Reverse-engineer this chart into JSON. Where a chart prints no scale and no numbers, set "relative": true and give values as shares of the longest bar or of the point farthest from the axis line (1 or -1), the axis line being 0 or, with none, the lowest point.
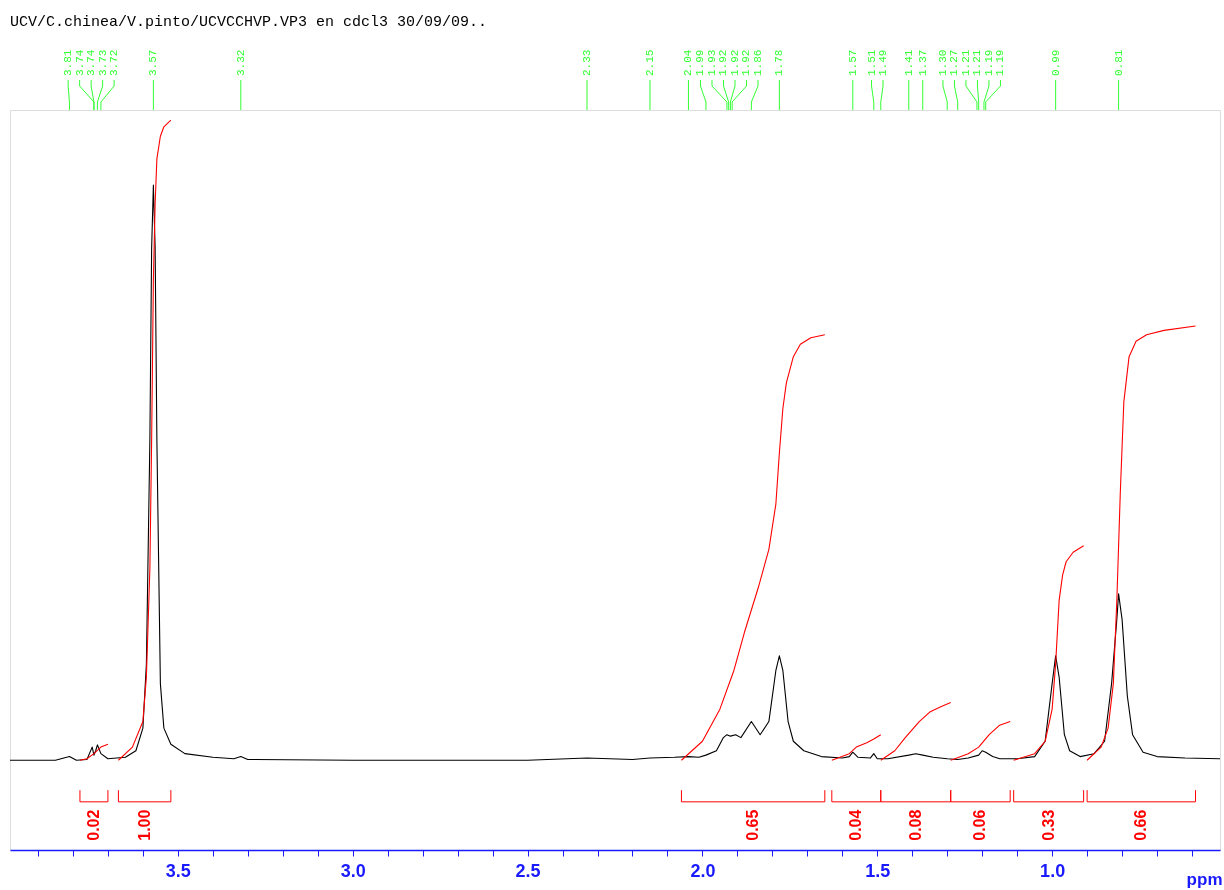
{
  "chart_data": {
    "type": "line",
    "relative": true,
    "title": "UCV/C.chinea/V.pinto/UCVCCHVP.VP3 en cdcl3 30/09/09..",
    "xlabel": "ppm",
    "xlim": [
      3.98,
      0.52
    ],
    "xticks": [
      {
        "value": 3.9,
        "label": null
      },
      {
        "value": 3.8,
        "label": null
      },
      {
        "value": 3.7,
        "label": null
      },
      {
        "value": 3.6,
        "label": null
      },
      3.5,
      {
        "value": 3.4,
        "label": null
      },
      {
        "value": 3.3,
        "label": null
      },
      {
        "value": 3.2,
        "label": null
      },
      {
        "value": 3.1,
        "label": null
      },
      {
        "value": 3,
        "label": "3.0"
      },
      {
        "value": 2.9,
        "label": null
      },
      {
        "value": 2.8,
        "label": null
      },
      {
        "value": 2.7,
        "label": null
      },
      {
        "value": 2.6,
        "label": null
      },
      2.5,
      {
        "value": 2.4,
        "label": null
      },
      {
        "value": 2.3,
        "label": null
      },
      {
        "value": 2.2,
        "label": null
      },
      {
        "value": 2.1,
        "label": null
      },
      {
        "value": 2,
        "label": "2.0"
      },
      {
        "value": 1.9,
        "label": null
      },
      {
        "value": 1.8,
        "label": null
      },
      {
        "value": 1.7,
        "label": null
      },
      {
        "value": 1.6,
        "label": null
      },
      1.5,
      {
        "value": 1.4,
        "label": null
      },
      {
        "value": 1.3,
        "label": null
      },
      {
        "value": 1.2,
        "label": null
      },
      {
        "value": 1.1,
        "label": null
      },
      {
        "value": 1,
        "label": "1.0"
      },
      {
        "value": 0.9,
        "label": null
      },
      {
        "value": 0.8,
        "label": null
      },
      {
        "value": 0.7,
        "label": null
      },
      {
        "value": 0.6,
        "label": null
      }
    ],
    "grid": false,
    "marker": "none",
    "line_style": "solid",
    "series": [
      {
        "color": "#000000",
        "x": [
          3.98,
          3.85,
          3.81,
          3.79,
          3.76,
          3.745,
          3.74,
          3.735,
          3.73,
          3.72,
          3.7,
          3.65,
          3.62,
          3.6,
          3.59,
          3.58,
          3.575,
          3.57,
          3.565,
          3.56,
          3.55,
          3.54,
          3.52,
          3.48,
          3.4,
          3.34,
          3.32,
          3.3,
          3.0,
          2.5,
          2.33,
          2.2,
          2.15,
          2.08,
          2.04,
          2.01,
          1.99,
          1.96,
          1.94,
          1.93,
          1.92,
          1.905,
          1.89,
          1.86,
          1.835,
          1.81,
          1.79,
          1.78,
          1.77,
          1.755,
          1.74,
          1.71,
          1.66,
          1.6,
          1.58,
          1.57,
          1.555,
          1.52,
          1.51,
          1.5,
          1.47,
          1.41,
          1.39,
          1.37,
          1.34,
          1.3,
          1.27,
          1.24,
          1.21,
          1.2,
          1.19,
          1.17,
          1.15,
          1.1,
          1.05,
          1.02,
          1.0,
          0.99,
          0.98,
          0.965,
          0.95,
          0.92,
          0.88,
          0.85,
          0.83,
          0.815,
          0.81,
          0.8,
          0.785,
          0.77,
          0.74,
          0.7,
          0.62,
          0.52
        ],
        "values": [
          0.123,
          0.123,
          0.128,
          0.123,
          0.124,
          0.141,
          0.13,
          0.136,
          0.144,
          0.132,
          0.125,
          0.127,
          0.136,
          0.167,
          0.255,
          0.562,
          0.825,
          0.911,
          0.825,
          0.562,
          0.228,
          0.167,
          0.145,
          0.132,
          0.127,
          0.125,
          0.128,
          0.124,
          0.123,
          0.123,
          0.126,
          0.124,
          0.126,
          0.127,
          0.128,
          0.127,
          0.13,
          0.136,
          0.154,
          0.158,
          0.156,
          0.158,
          0.154,
          0.176,
          0.158,
          0.176,
          0.246,
          0.266,
          0.246,
          0.176,
          0.149,
          0.136,
          0.128,
          0.126,
          0.128,
          0.134,
          0.127,
          0.126,
          0.132,
          0.125,
          0.125,
          0.13,
          0.132,
          0.13,
          0.127,
          0.125,
          0.124,
          0.126,
          0.13,
          0.136,
          0.134,
          0.128,
          0.125,
          0.125,
          0.128,
          0.149,
          0.228,
          0.266,
          0.237,
          0.158,
          0.136,
          0.128,
          0.132,
          0.149,
          0.228,
          0.316,
          0.351,
          0.316,
          0.211,
          0.158,
          0.134,
          0.128,
          0.126,
          0.125
        ]
      },
      {
        "color": "#ff0000",
        "x": [
          3.78,
          3.76,
          3.74,
          3.72,
          3.7
        ],
        "values": [
          0.123,
          0.125,
          0.132,
          0.141,
          0.145
        ]
      },
      {
        "color": "#ff0000",
        "x": [
          3.67,
          3.63,
          3.6,
          3.59,
          3.58,
          3.575,
          3.57,
          3.565,
          3.56,
          3.55,
          3.54,
          3.52
        ],
        "values": [
          0.123,
          0.141,
          0.176,
          0.237,
          0.386,
          0.562,
          0.781,
          0.886,
          0.947,
          0.978,
          0.991,
          1.0
        ]
      },
      {
        "color": "#ff0000",
        "x": [
          2.06,
          2.0,
          1.95,
          1.91,
          1.88,
          1.84,
          1.81,
          1.79,
          1.78,
          1.77,
          1.76,
          1.74,
          1.72,
          1.69,
          1.65
        ],
        "values": [
          0.123,
          0.149,
          0.193,
          0.246,
          0.298,
          0.36,
          0.412,
          0.474,
          0.544,
          0.605,
          0.64,
          0.676,
          0.693,
          0.702,
          0.706
        ]
      },
      {
        "color": "#ff0000",
        "x": [
          1.63,
          1.58,
          1.56,
          1.53,
          1.51,
          1.49
        ],
        "values": [
          0.123,
          0.132,
          0.141,
          0.147,
          0.152,
          0.158
        ]
      },
      {
        "color": "#ff0000",
        "x": [
          1.49,
          1.45,
          1.42,
          1.38,
          1.35,
          1.32,
          1.29
        ],
        "values": [
          0.123,
          0.136,
          0.154,
          0.176,
          0.189,
          0.196,
          0.202
        ]
      },
      {
        "color": "#ff0000",
        "x": [
          1.29,
          1.24,
          1.21,
          1.18,
          1.15,
          1.12
        ],
        "values": [
          0.123,
          0.132,
          0.141,
          0.158,
          0.171,
          0.176
        ]
      },
      {
        "color": "#ff0000",
        "x": [
          1.11,
          1.05,
          1.02,
          1.0,
          0.99,
          0.98,
          0.97,
          0.96,
          0.94,
          0.91
        ],
        "values": [
          0.123,
          0.132,
          0.149,
          0.193,
          0.255,
          0.342,
          0.377,
          0.395,
          0.408,
          0.417
        ]
      },
      {
        "color": "#ff0000",
        "x": [
          0.9,
          0.86,
          0.84,
          0.825,
          0.815,
          0.805,
          0.795,
          0.78,
          0.76,
          0.73,
          0.68,
          0.59
        ],
        "values": [
          0.123,
          0.141,
          0.167,
          0.228,
          0.342,
          0.491,
          0.614,
          0.676,
          0.697,
          0.706,
          0.712,
          0.718
        ]
      }
    ],
    "annotations": [
      "0.02",
      "1.00",
      "0.65",
      "0.04",
      "0.08",
      "0.06",
      "0.33",
      "0.66",
      {
        "text": "3.81",
        "x": 3.81
      },
      {
        "text": "3.74",
        "x": 3.74
      },
      {
        "text": "3.74",
        "x": 3.74
      },
      {
        "text": "3.73",
        "x": 3.73
      },
      {
        "text": "3.72",
        "x": 3.72
      },
      {
        "text": "3.57",
        "x": 3.57
      },
      {
        "text": "3.32",
        "x": 3.32
      },
      {
        "text": "2.33",
        "x": 2.33
      },
      {
        "text": "2.15",
        "x": 2.15
      },
      {
        "text": "2.04",
        "x": 2.04
      },
      {
        "text": "1.99",
        "x": 1.99
      },
      {
        "text": "1.93",
        "x": 1.93
      },
      {
        "text": "1.92",
        "x": 1.925
      },
      {
        "text": "1.92",
        "x": 1.92
      },
      {
        "text": "1.92",
        "x": 1.915
      },
      {
        "text": "1.86",
        "x": 1.86
      },
      {
        "text": "1.78",
        "x": 1.78
      },
      {
        "text": "1.57",
        "x": 1.57
      },
      {
        "text": "1.51",
        "x": 1.51
      },
      {
        "text": "1.49",
        "x": 1.49
      },
      {
        "text": "1.41",
        "x": 1.41
      },
      {
        "text": "1.37",
        "x": 1.37
      },
      {
        "text": "1.30",
        "x": 1.3
      },
      {
        "text": "1.27",
        "x": 1.27
      },
      {
        "text": "1.21",
        "x": 1.215
      },
      {
        "text": "1.21",
        "x": 1.21
      },
      {
        "text": "1.19",
        "x": 1.195
      },
      {
        "text": "1.19",
        "x": 1.19
      },
      {
        "text": "0.99",
        "x": 0.99
      },
      {
        "text": "0.81",
        "x": 0.81
      }
    ]
  }
}
